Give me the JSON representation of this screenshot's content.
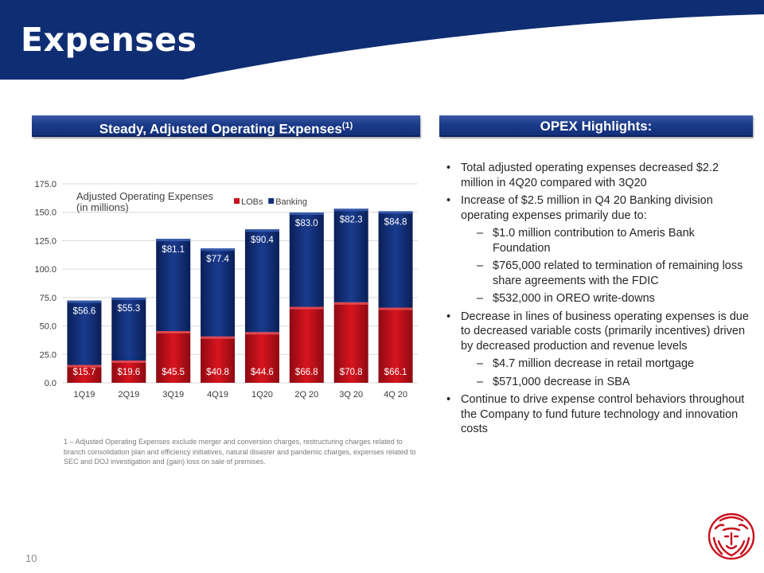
{
  "header": {
    "title": "Expenses",
    "band_color": "#0f2d72"
  },
  "left_panel": {
    "heading": "Steady, Adjusted Operating Expenses",
    "heading_sup": "(1)",
    "footnote": "1 – Adjusted Operating Expenses exclude merger and conversion charges, restructuring charges related to branch consolidation plan and efficiency initiatives, natural disaster and pandemic charges, expenses related to SEC and DOJ investigation and (gain) loss on sale of premises."
  },
  "chart_data": {
    "type": "bar",
    "stacked": true,
    "title_lines": [
      "Adjusted Operating Expenses",
      "(in millions)"
    ],
    "categories": [
      "1Q19",
      "2Q19",
      "3Q19",
      "4Q19",
      "1Q20",
      "2Q 20",
      "3Q 20",
      "4Q 20"
    ],
    "series": [
      {
        "name": "LOBs",
        "color": "#c8101c",
        "values": [
          15.7,
          19.6,
          45.5,
          40.8,
          44.6,
          66.8,
          70.8,
          66.1
        ],
        "labels": [
          "$15.7",
          "$19.6",
          "$45.5",
          "$40.8",
          "$44.6",
          "$66.8",
          "$70.8",
          "$66.1"
        ]
      },
      {
        "name": "Banking",
        "color": "#12307a",
        "values": [
          56.6,
          55.3,
          81.1,
          77.4,
          90.4,
          83.0,
          82.3,
          84.8
        ],
        "labels": [
          "$56.6",
          "$55.3",
          "$81.1",
          "$77.4",
          "$90.4",
          "$83.0",
          "$82.3",
          "$84.8"
        ]
      }
    ],
    "yticks": [
      "0.0",
      "25.0",
      "50.0",
      "75.0",
      "100.0",
      "125.0",
      "150.0",
      "175.0"
    ],
    "ylim": [
      0,
      175
    ],
    "grid": true,
    "legend_position": "top"
  },
  "right_panel": {
    "heading": "OPEX Highlights:",
    "bullets": [
      {
        "level": 1,
        "text": "Total adjusted operating expenses decreased $2.2 million in 4Q20 compared with 3Q20"
      },
      {
        "level": 1,
        "text": "Increase  of $2.5 million in Q4 20 Banking division operating expenses primarily due to:"
      },
      {
        "level": 2,
        "text": "$1.0 million contribution to Ameris Bank Foundation"
      },
      {
        "level": 2,
        "text": "$765,000 related to termination of remaining loss share agreements with the FDIC"
      },
      {
        "level": 2,
        "text": "$532,000 in OREO write-downs"
      },
      {
        "level": 1,
        "text": "Decrease in lines of business operating expenses is due to decreased variable costs (primarily incentives) driven by decreased production and revenue levels"
      },
      {
        "level": 2,
        "text": "$4.7 million decrease in retail mortgage"
      },
      {
        "level": 2,
        "text": "$571,000 decrease in SBA"
      },
      {
        "level": 1,
        "text": "Continue to drive expense control behaviors throughout  the Company to fund future technology and innovation costs"
      }
    ],
    "bullet_char": "•",
    "sub_bullet_char": "–"
  },
  "footer": {
    "page_number": "10",
    "logo_icon": "lion-head-logo-icon",
    "logo_color": "#c8101c"
  }
}
